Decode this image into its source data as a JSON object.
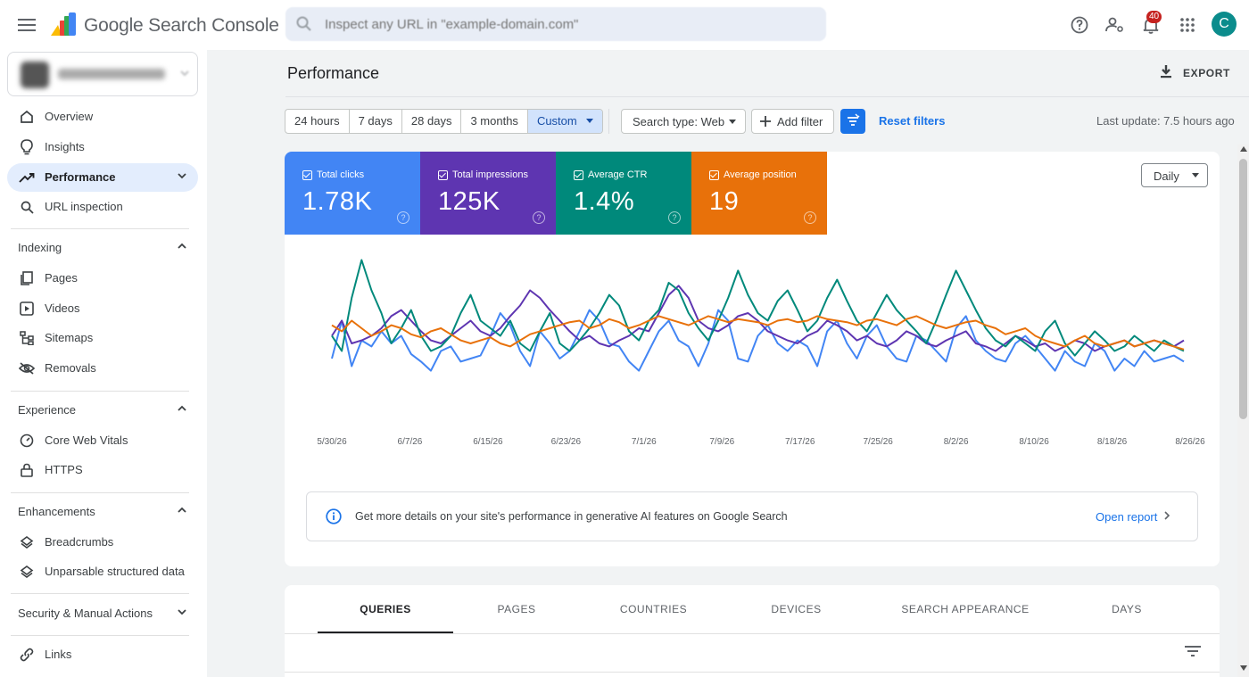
{
  "app": {
    "name": "Google Search Console"
  },
  "search": {
    "placeholder": "Inspect any URL in \"example-domain.com\""
  },
  "notifications": {
    "count": "40"
  },
  "user": {
    "initial": "C"
  },
  "sidebar": {
    "items": [
      {
        "label": "Overview",
        "icon": "home-icon"
      },
      {
        "label": "Insights",
        "icon": "lightbulb-icon"
      },
      {
        "label": "Performance",
        "icon": "trending-up-icon",
        "active": true
      },
      {
        "label": "URL inspection",
        "icon": "search-icon"
      }
    ],
    "sections": [
      {
        "title": "Indexing",
        "items": [
          "Pages",
          "Videos",
          "Sitemaps",
          "Removals"
        ]
      },
      {
        "title": "Experience",
        "items": [
          "Core Web Vitals",
          "HTTPS"
        ]
      },
      {
        "title": "Enhancements",
        "items": [
          "Breadcrumbs",
          "Unparsable structured data"
        ]
      },
      {
        "title": "Security & Manual Actions",
        "items": []
      }
    ],
    "links": "Links"
  },
  "main": {
    "title": "Performance",
    "export_label": "EXPORT",
    "ranges": [
      "24 hours",
      "7 days",
      "28 days",
      "3 months",
      "Custom"
    ],
    "search_type": "Search type: Web",
    "add_filter": "Add filter",
    "reset_filters": "Reset filters",
    "last_update": "Last update: 7.5 hours ago"
  },
  "metrics": [
    {
      "label": "Total clicks",
      "value": "1.78K",
      "color": "#4285f4"
    },
    {
      "label": "Total impressions",
      "value": "125K",
      "color": "#5e35b1"
    },
    {
      "label": "Average CTR",
      "value": "1.4%",
      "color": "#00897b"
    },
    {
      "label": "Average position",
      "value": "19",
      "color": "#e8710a"
    }
  ],
  "granularity": "Daily",
  "chart_data": {
    "type": "line",
    "x_ticks": [
      "5/30/26",
      "6/7/26",
      "6/15/26",
      "6/23/26",
      "7/1/26",
      "7/9/26",
      "7/17/26",
      "7/25/26",
      "8/2/26",
      "8/10/26",
      "8/18/26",
      "8/26/26"
    ],
    "series": [
      {
        "name": "Total clicks",
        "color": "#4285f4",
        "values": [
          30,
          55,
          25,
          42,
          38,
          48,
          40,
          45,
          33,
          28,
          22,
          35,
          38,
          28,
          30,
          32,
          45,
          60,
          52,
          35,
          25,
          48,
          40,
          30,
          35,
          48,
          62,
          55,
          40,
          38,
          28,
          22,
          35,
          48,
          55,
          42,
          38,
          25,
          40,
          62,
          55,
          30,
          28,
          45,
          52,
          40,
          35,
          42,
          38,
          25,
          48,
          55,
          40,
          30,
          45,
          52,
          38,
          30,
          28,
          45,
          42,
          35,
          28,
          50,
          58,
          42,
          35,
          30,
          28,
          40,
          45,
          38,
          30,
          22,
          35,
          28,
          25,
          40,
          35,
          22,
          30,
          25,
          35,
          28,
          30,
          32,
          28
        ]
      },
      {
        "name": "Total impressions",
        "color": "#5e35b1",
        "values": [
          45,
          55,
          40,
          42,
          45,
          50,
          58,
          62,
          55,
          48,
          42,
          40,
          45,
          50,
          55,
          48,
          45,
          50,
          58,
          65,
          75,
          70,
          62,
          55,
          48,
          42,
          45,
          40,
          38,
          42,
          45,
          50,
          48,
          60,
          72,
          78,
          70,
          55,
          50,
          48,
          52,
          58,
          60,
          55,
          48,
          45,
          42,
          40,
          45,
          48,
          55,
          52,
          48,
          42,
          45,
          40,
          38,
          42,
          48,
          45,
          40,
          38,
          42,
          45,
          48,
          40,
          38,
          35,
          40,
          45,
          42,
          38,
          40,
          35,
          38,
          42,
          40,
          35,
          38,
          40,
          42,
          38,
          40,
          42,
          40,
          38,
          42
        ]
      },
      {
        "name": "Average CTR",
        "color": "#00897b",
        "values": [
          45,
          35,
          70,
          95,
          75,
          60,
          40,
          50,
          62,
          45,
          35,
          38,
          45,
          60,
          72,
          55,
          50,
          45,
          55,
          40,
          35,
          48,
          60,
          40,
          35,
          42,
          50,
          60,
          72,
          65,
          48,
          42,
          55,
          62,
          80,
          75,
          60,
          50,
          42,
          55,
          70,
          88,
          72,
          60,
          55,
          68,
          75,
          62,
          48,
          55,
          70,
          82,
          68,
          55,
          48,
          60,
          72,
          62,
          55,
          48,
          40,
          55,
          72,
          88,
          75,
          62,
          50,
          42,
          38,
          45,
          40,
          35,
          48,
          55,
          40,
          32,
          40,
          48,
          42,
          35,
          38,
          45,
          40,
          35,
          42,
          38,
          35
        ]
      },
      {
        "name": "Average position",
        "color": "#e8710a",
        "values": [
          52,
          48,
          55,
          50,
          45,
          48,
          52,
          50,
          46,
          44,
          48,
          50,
          46,
          42,
          40,
          42,
          44,
          40,
          38,
          42,
          46,
          48,
          50,
          52,
          54,
          55,
          50,
          52,
          56,
          54,
          50,
          52,
          55,
          58,
          56,
          54,
          52,
          55,
          58,
          56,
          54,
          56,
          55,
          54,
          52,
          55,
          56,
          54,
          55,
          58,
          56,
          55,
          54,
          52,
          55,
          56,
          54,
          52,
          56,
          58,
          55,
          52,
          50,
          52,
          54,
          55,
          52,
          50,
          46,
          48,
          50,
          45,
          42,
          40,
          38,
          42,
          45,
          40,
          38,
          40,
          42,
          38,
          40,
          42,
          40,
          38,
          36
        ]
      }
    ]
  },
  "ai_banner": {
    "message": "Get more details on your site's performance in generative AI features on Google Search",
    "action": "Open report"
  },
  "tabs": [
    "QUERIES",
    "PAGES",
    "COUNTRIES",
    "DEVICES",
    "SEARCH APPEARANCE",
    "DAYS"
  ]
}
